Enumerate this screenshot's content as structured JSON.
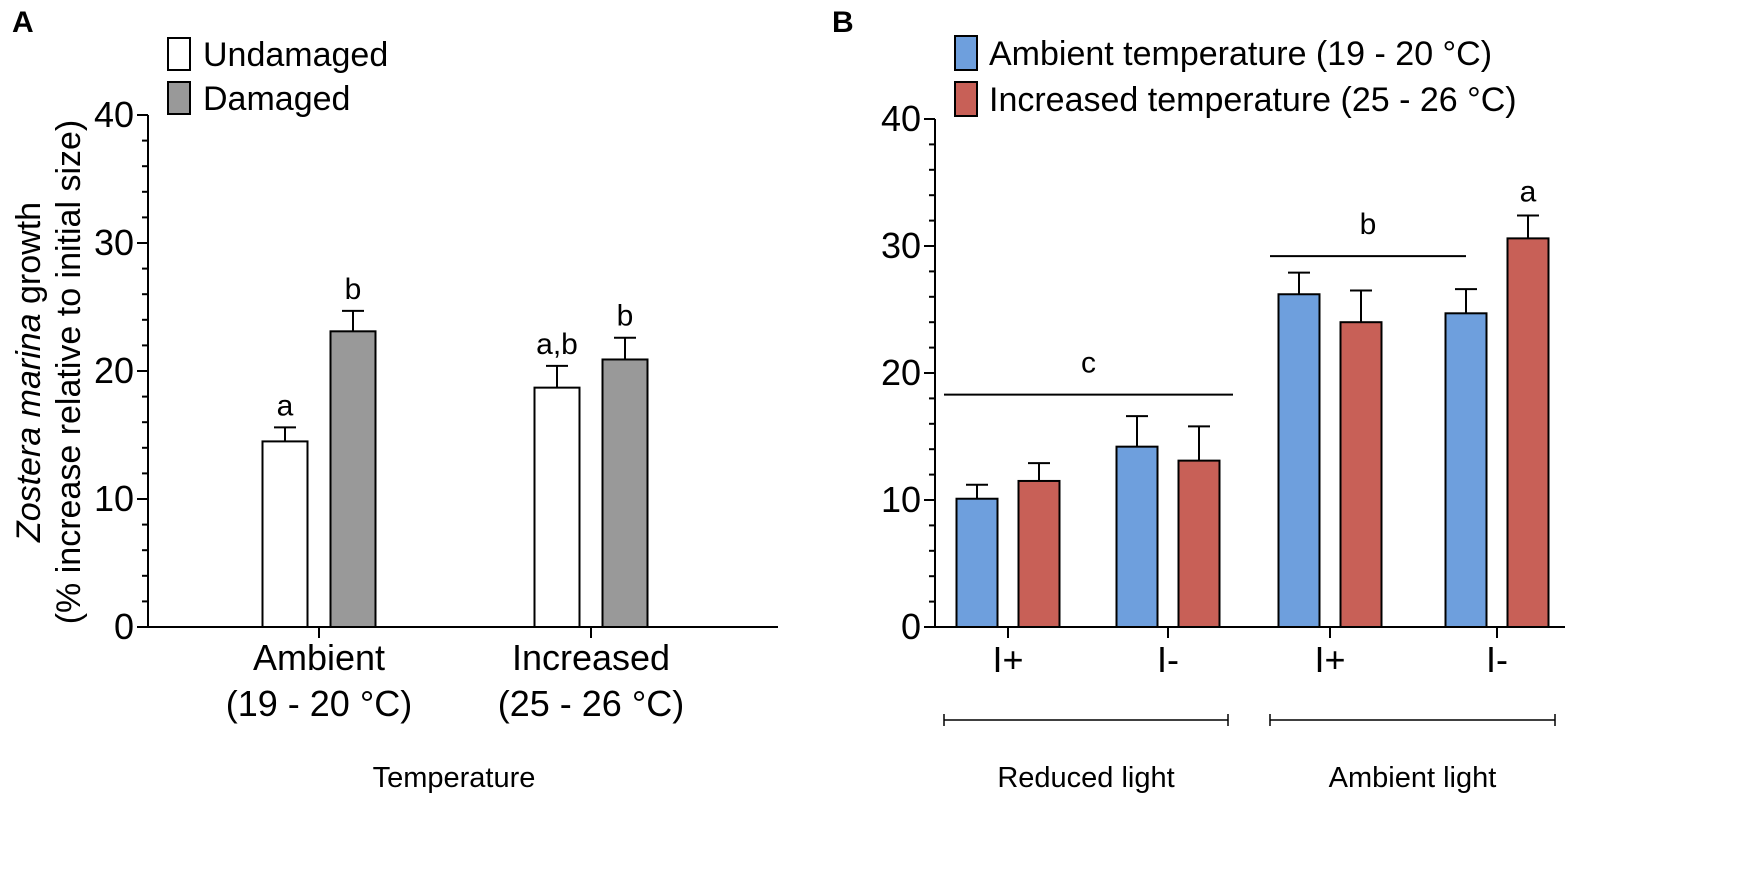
{
  "chart_data": [
    {
      "panel": "A",
      "type": "bar",
      "title": "",
      "xlabel": "Temperature",
      "ylabel_species": "Zostera marina",
      "ylabel_suffix": " growth",
      "ylabel_line2": "(% increase relative to initial size)",
      "ylim": [
        0,
        40
      ],
      "yticks": [
        0,
        10,
        20,
        30,
        40
      ],
      "categories": [
        {
          "line1": "Ambient",
          "line2": "(19 - 20 °C)"
        },
        {
          "line1": "Increased",
          "line2": "(25 - 26 °C)"
        }
      ],
      "series": [
        {
          "name": "Undamaged",
          "color": "#ffffff",
          "values": [
            14.5,
            18.7
          ],
          "errors": [
            1.1,
            1.7
          ]
        },
        {
          "name": "Damaged",
          "color": "#999999",
          "values": [
            23.1,
            20.9
          ],
          "errors": [
            1.6,
            1.7
          ]
        }
      ],
      "significance": [
        {
          "category": 0,
          "series": 0,
          "label": "a"
        },
        {
          "category": 0,
          "series": 1,
          "label": "b"
        },
        {
          "category": 1,
          "series": 0,
          "label": "a,b"
        },
        {
          "category": 1,
          "series": 1,
          "label": "b"
        }
      ]
    },
    {
      "panel": "B",
      "type": "bar",
      "title": "",
      "ylim": [
        0,
        40
      ],
      "yticks": [
        0,
        10,
        20,
        30,
        40
      ],
      "categories": [
        "I+",
        "I-",
        "I+",
        "I-"
      ],
      "groups": [
        {
          "label": "Reduced light",
          "categories": [
            0,
            1
          ]
        },
        {
          "label": "Ambient light",
          "categories": [
            2,
            3
          ]
        }
      ],
      "series": [
        {
          "name": "Ambient temperature (19 - 20 °C)",
          "color": "#6e9fdd",
          "values": [
            10.1,
            14.2,
            26.2,
            24.7
          ],
          "errors": [
            1.1,
            2.4,
            1.7,
            1.9
          ]
        },
        {
          "name": "Increased temperature (25 - 26 °C)",
          "color": "#c86057",
          "values": [
            11.5,
            13.1,
            24.0,
            30.6
          ],
          "errors": [
            1.4,
            2.7,
            2.5,
            1.8
          ]
        }
      ],
      "significance_lines": [
        {
          "label": "c",
          "from_category": 0,
          "to_category": 1,
          "y": 18.3
        },
        {
          "label": "b",
          "from_category": 2,
          "to_category": 3,
          "y": 29.2
        }
      ],
      "significance": [
        {
          "category": 3,
          "series": 1,
          "label": "a"
        }
      ]
    }
  ]
}
